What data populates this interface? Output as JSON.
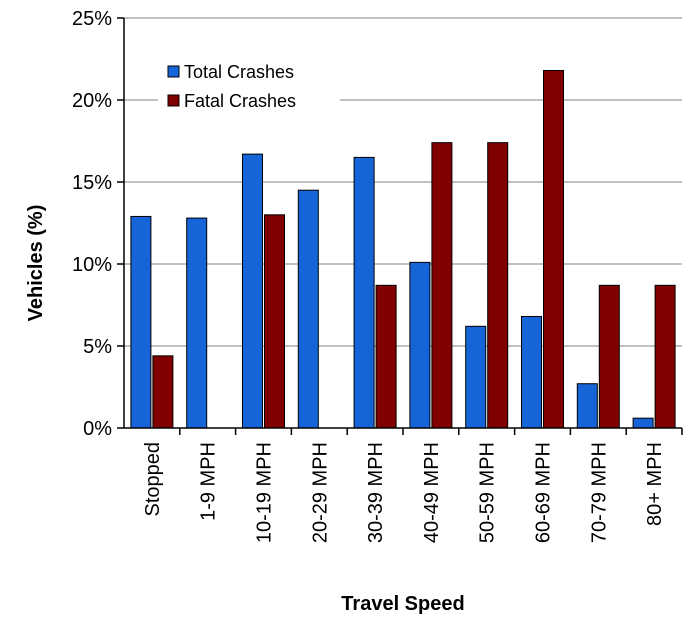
{
  "chart_data": {
    "type": "bar",
    "categories": [
      "Stopped",
      "1-9 MPH",
      "10-19 MPH",
      "20-29 MPH",
      "30-39 MPH",
      "40-49 MPH",
      "50-59 MPH",
      "60-69 MPH",
      "70-79 MPH",
      "80+ MPH"
    ],
    "series": [
      {
        "name": "Total Crashes",
        "color": "#1565D8",
        "values": [
          12.9,
          12.8,
          16.7,
          14.5,
          16.5,
          10.1,
          6.2,
          6.8,
          2.7,
          0.6
        ]
      },
      {
        "name": "Fatal Crashes",
        "color": "#800000",
        "values": [
          4.4,
          0,
          13.0,
          0,
          8.7,
          17.4,
          17.4,
          21.8,
          8.7,
          8.7
        ]
      }
    ],
    "xlabel": "Travel Speed",
    "ylabel": "Vehicles (%)",
    "ylim": [
      0,
      25
    ],
    "yticks": [
      0,
      5,
      10,
      15,
      20,
      25
    ],
    "ytick_labels": [
      "0%",
      "5%",
      "10%",
      "15%",
      "20%",
      "25%"
    ],
    "grid": true,
    "legend_position": "top-left"
  }
}
